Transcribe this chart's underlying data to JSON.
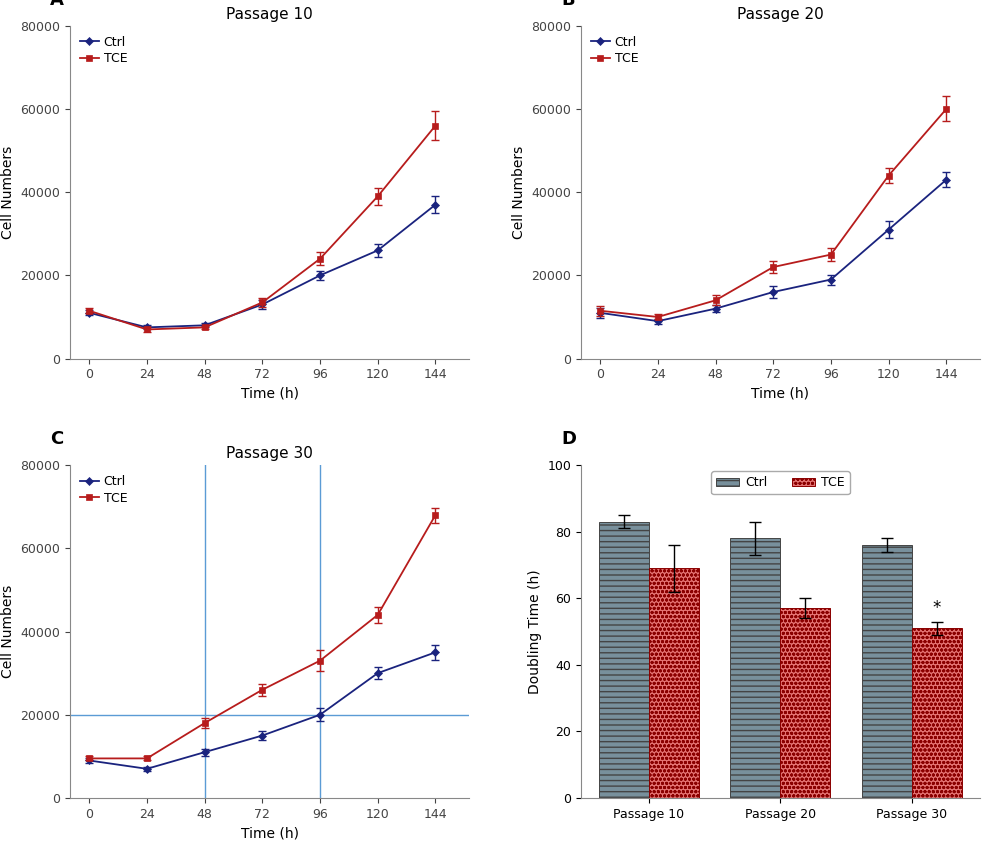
{
  "time_points": [
    0,
    24,
    48,
    72,
    96,
    120,
    144
  ],
  "p10_ctrl_mean": [
    11000,
    7500,
    8000,
    13000,
    20000,
    26000,
    37000
  ],
  "p10_ctrl_err": [
    600,
    500,
    500,
    1000,
    1000,
    1500,
    2000
  ],
  "p10_tce_mean": [
    11500,
    7000,
    7500,
    13500,
    24000,
    39000,
    56000
  ],
  "p10_tce_err": [
    600,
    500,
    400,
    1000,
    1500,
    2000,
    3500
  ],
  "p20_ctrl_mean": [
    11000,
    9000,
    12000,
    16000,
    19000,
    31000,
    43000
  ],
  "p20_ctrl_err": [
    1200,
    600,
    800,
    1500,
    1200,
    2000,
    1800
  ],
  "p20_tce_mean": [
    11500,
    10000,
    14000,
    22000,
    25000,
    44000,
    60000
  ],
  "p20_tce_err": [
    1200,
    600,
    1200,
    1500,
    1500,
    1800,
    3000
  ],
  "p30_ctrl_mean": [
    9000,
    7000,
    11000,
    15000,
    20000,
    30000,
    35000
  ],
  "p30_ctrl_err": [
    600,
    500,
    800,
    1000,
    1500,
    1500,
    1800
  ],
  "p30_tce_mean": [
    9500,
    9500,
    18000,
    26000,
    33000,
    44000,
    68000
  ],
  "p30_tce_err": [
    500,
    500,
    1200,
    1500,
    2500,
    2000,
    1800
  ],
  "bar_ctrl_mean": [
    83,
    78,
    76
  ],
  "bar_ctrl_err": [
    2,
    5,
    2
  ],
  "bar_tce_mean": [
    69,
    57,
    51
  ],
  "bar_tce_err": [
    7,
    3,
    2
  ],
  "ctrl_color": "#1a237e",
  "tce_color": "#b71c1c",
  "ctrl_bar_color": "#78909c",
  "tce_bar_color": "#e57373",
  "vline_color": "#5b9bd5",
  "hline_color": "#5b9bd5",
  "ylim_line": [
    0,
    80000
  ],
  "yticks_line": [
    0,
    20000,
    40000,
    60000,
    80000
  ],
  "ylim_bar": [
    0,
    100
  ],
  "yticks_bar": [
    0,
    20,
    40,
    60,
    80,
    100
  ],
  "passage_labels": [
    "Passage 10",
    "Passage 20",
    "Passage 30"
  ]
}
